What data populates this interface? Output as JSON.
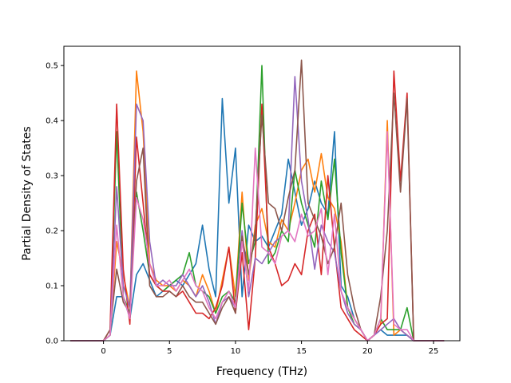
{
  "chart_data": {
    "type": "line",
    "title": "",
    "xlabel": "Frequency (THz)",
    "ylabel": "Partial Density of States",
    "xlim": [
      -3.0,
      27.0
    ],
    "ylim": [
      0.0,
      0.535
    ],
    "xticks": [
      0,
      5,
      10,
      15,
      20,
      25
    ],
    "yticks": [
      0.0,
      0.1,
      0.2,
      0.3,
      0.4,
      0.5
    ],
    "xtick_labels": [
      "0",
      "5",
      "10",
      "15",
      "20",
      "25"
    ],
    "ytick_labels": [
      "0.0",
      "0.1",
      "0.2",
      "0.3",
      "0.4",
      "0.5"
    ],
    "grid": false,
    "legend": false,
    "series": [
      {
        "color": "#1f77b4",
        "x": [
          -2.5,
          0.0,
          0.5,
          1.0,
          1.5,
          2.0,
          2.5,
          3.0,
          3.5,
          4.0,
          4.5,
          5.0,
          5.5,
          6.0,
          6.5,
          7.0,
          7.5,
          8.0,
          8.5,
          9.0,
          9.5,
          10.0,
          10.5,
          11.0,
          11.5,
          12.0,
          12.5,
          13.0,
          13.5,
          14.0,
          14.5,
          15.0,
          15.5,
          16.0,
          16.5,
          17.0,
          17.5,
          18.0,
          18.5,
          19.0,
          19.5,
          20.0,
          20.5,
          21.0,
          21.5,
          22.0,
          22.5,
          23.0,
          23.5,
          25.8
        ],
        "y": [
          0,
          0,
          0.01,
          0.08,
          0.08,
          0.04,
          0.12,
          0.14,
          0.11,
          0.08,
          0.09,
          0.1,
          0.11,
          0.1,
          0.12,
          0.14,
          0.21,
          0.13,
          0.08,
          0.44,
          0.25,
          0.35,
          0.08,
          0.21,
          0.18,
          0.19,
          0.17,
          0.2,
          0.23,
          0.33,
          0.27,
          0.21,
          0.24,
          0.29,
          0.25,
          0.23,
          0.38,
          0.1,
          0.08,
          0.04,
          0.02,
          0,
          0.01,
          0.02,
          0.01,
          0.01,
          0.01,
          0.01,
          0,
          0
        ]
      },
      {
        "color": "#ff7f0e",
        "x": [
          -2.5,
          0.0,
          0.5,
          1.0,
          1.5,
          2.0,
          2.5,
          3.0,
          3.5,
          4.0,
          4.5,
          5.0,
          5.5,
          6.0,
          6.5,
          7.0,
          7.5,
          8.0,
          8.5,
          9.0,
          9.5,
          10.0,
          10.5,
          11.0,
          11.5,
          12.0,
          12.5,
          13.0,
          13.5,
          14.0,
          14.5,
          15.0,
          15.5,
          16.0,
          16.5,
          17.0,
          17.5,
          18.0,
          18.5,
          19.0,
          19.5,
          20.0,
          20.5,
          21.0,
          21.5,
          22.0,
          22.5,
          23.0,
          23.5,
          25.8
        ],
        "y": [
          0,
          0,
          0.01,
          0.18,
          0.12,
          0.06,
          0.49,
          0.38,
          0.14,
          0.11,
          0.1,
          0.1,
          0.09,
          0.11,
          0.1,
          0.08,
          0.12,
          0.09,
          0.05,
          0.11,
          0.17,
          0.08,
          0.27,
          0.11,
          0.21,
          0.24,
          0.18,
          0.17,
          0.22,
          0.2,
          0.25,
          0.31,
          0.33,
          0.27,
          0.34,
          0.26,
          0.24,
          0.18,
          0.06,
          0.04,
          0.02,
          0,
          0.01,
          0.03,
          0.4,
          0.01,
          0.02,
          0.01,
          0,
          0
        ]
      },
      {
        "color": "#2ca02c",
        "x": [
          -2.5,
          0.0,
          0.5,
          1.0,
          1.5,
          2.0,
          2.5,
          3.0,
          3.5,
          4.0,
          4.5,
          5.0,
          5.5,
          6.0,
          6.5,
          7.0,
          7.5,
          8.0,
          8.5,
          9.0,
          9.5,
          10.0,
          10.5,
          11.0,
          11.5,
          12.0,
          12.5,
          13.0,
          13.5,
          14.0,
          14.5,
          15.0,
          15.5,
          16.0,
          16.5,
          17.0,
          17.5,
          18.0,
          18.5,
          19.0,
          19.5,
          20.0,
          20.5,
          21.0,
          21.5,
          22.0,
          22.5,
          23.0,
          23.5,
          25.8
        ],
        "y": [
          0,
          0,
          0.01,
          0.38,
          0.08,
          0.05,
          0.27,
          0.2,
          0.12,
          0.1,
          0.09,
          0.1,
          0.11,
          0.12,
          0.16,
          0.1,
          0.09,
          0.08,
          0.05,
          0.08,
          0.09,
          0.07,
          0.25,
          0.14,
          0.18,
          0.5,
          0.14,
          0.16,
          0.2,
          0.18,
          0.31,
          0.25,
          0.21,
          0.17,
          0.29,
          0.22,
          0.33,
          0.16,
          0.06,
          0.03,
          0.02,
          0,
          0.01,
          0.04,
          0.02,
          0.02,
          0.02,
          0.06,
          0,
          0
        ]
      },
      {
        "color": "#d62728",
        "x": [
          -2.5,
          0.0,
          0.5,
          1.0,
          1.5,
          2.0,
          2.5,
          3.0,
          3.5,
          4.0,
          4.5,
          5.0,
          5.5,
          6.0,
          6.5,
          7.0,
          7.5,
          8.0,
          8.5,
          9.0,
          9.5,
          10.0,
          10.5,
          11.0,
          11.5,
          12.0,
          12.5,
          13.0,
          13.5,
          14.0,
          14.5,
          15.0,
          15.5,
          16.0,
          16.5,
          17.0,
          17.5,
          18.0,
          18.5,
          19.0,
          19.5,
          20.0,
          20.5,
          21.0,
          21.5,
          22.0,
          22.5,
          23.0,
          23.5,
          25.8
        ],
        "y": [
          0,
          0,
          0.02,
          0.43,
          0.13,
          0.03,
          0.37,
          0.25,
          0.12,
          0.1,
          0.09,
          0.09,
          0.08,
          0.09,
          0.07,
          0.05,
          0.05,
          0.04,
          0.06,
          0.1,
          0.17,
          0.05,
          0.16,
          0.02,
          0.15,
          0.43,
          0.17,
          0.14,
          0.1,
          0.11,
          0.14,
          0.12,
          0.2,
          0.23,
          0.12,
          0.3,
          0.17,
          0.06,
          0.04,
          0.02,
          0.01,
          0,
          0.01,
          0.03,
          0.04,
          0.49,
          0.29,
          0.45,
          0,
          0
        ]
      },
      {
        "color": "#9467bd",
        "x": [
          -2.5,
          0.0,
          0.5,
          1.0,
          1.5,
          2.0,
          2.5,
          3.0,
          3.5,
          4.0,
          4.5,
          5.0,
          5.5,
          6.0,
          6.5,
          7.0,
          7.5,
          8.0,
          8.5,
          9.0,
          9.5,
          10.0,
          10.5,
          11.0,
          11.5,
          12.0,
          12.5,
          13.0,
          13.5,
          14.0,
          14.5,
          15.0,
          15.5,
          16.0,
          16.5,
          17.0,
          17.5,
          18.0,
          18.5,
          19.0,
          19.5,
          20.0,
          20.5,
          21.0,
          21.5,
          22.0,
          22.5,
          23.0,
          23.5,
          25.8
        ],
        "y": [
          0,
          0,
          0.01,
          0.28,
          0.1,
          0.06,
          0.43,
          0.4,
          0.18,
          0.1,
          0.11,
          0.1,
          0.1,
          0.12,
          0.1,
          0.08,
          0.1,
          0.07,
          0.03,
          0.07,
          0.08,
          0.06,
          0.2,
          0.08,
          0.15,
          0.14,
          0.16,
          0.18,
          0.19,
          0.2,
          0.48,
          0.29,
          0.22,
          0.13,
          0.21,
          0.18,
          0.16,
          0.09,
          0.05,
          0.03,
          0.02,
          0,
          0.01,
          0.02,
          0.03,
          0.04,
          0.02,
          0.01,
          0,
          0
        ]
      },
      {
        "color": "#8c564b",
        "x": [
          -2.5,
          0.0,
          0.5,
          1.0,
          1.5,
          2.0,
          2.5,
          3.0,
          3.5,
          4.0,
          4.5,
          5.0,
          5.5,
          6.0,
          6.5,
          7.0,
          7.5,
          8.0,
          8.5,
          9.0,
          9.5,
          10.0,
          10.5,
          11.0,
          11.5,
          12.0,
          12.5,
          13.0,
          13.5,
          14.0,
          14.5,
          15.0,
          15.5,
          16.0,
          16.5,
          17.0,
          17.5,
          18.0,
          18.5,
          19.0,
          19.5,
          20.0,
          20.5,
          21.0,
          21.5,
          22.0,
          22.5,
          23.0,
          23.5,
          25.8
        ],
        "y": [
          0,
          0,
          0.02,
          0.13,
          0.07,
          0.05,
          0.29,
          0.35,
          0.1,
          0.08,
          0.08,
          0.09,
          0.08,
          0.1,
          0.08,
          0.07,
          0.07,
          0.05,
          0.03,
          0.06,
          0.08,
          0.05,
          0.19,
          0.12,
          0.2,
          0.41,
          0.25,
          0.24,
          0.2,
          0.26,
          0.31,
          0.51,
          0.25,
          0.22,
          0.19,
          0.14,
          0.17,
          0.25,
          0.12,
          0.06,
          0.02,
          0,
          0.01,
          0.08,
          0.2,
          0.45,
          0.27,
          0.44,
          0,
          0
        ]
      },
      {
        "color": "#e377c2",
        "x": [
          -2.5,
          0.0,
          0.5,
          1.0,
          1.5,
          2.0,
          2.5,
          3.0,
          3.5,
          4.0,
          4.5,
          5.0,
          5.5,
          6.0,
          6.5,
          7.0,
          7.5,
          8.0,
          8.5,
          9.0,
          9.5,
          10.0,
          10.5,
          11.0,
          11.5,
          12.0,
          12.5,
          13.0,
          13.5,
          14.0,
          14.5,
          15.0,
          15.5,
          16.0,
          16.5,
          17.0,
          17.5,
          18.0,
          18.5,
          19.0,
          19.5,
          20.0,
          20.5,
          21.0,
          21.5,
          22.0,
          22.5,
          23.0,
          23.5,
          25.8
        ],
        "y": [
          0,
          0,
          0.01,
          0.21,
          0.08,
          0.04,
          0.26,
          0.22,
          0.14,
          0.1,
          0.1,
          0.11,
          0.09,
          0.11,
          0.13,
          0.1,
          0.09,
          0.06,
          0.04,
          0.07,
          0.09,
          0.06,
          0.18,
          0.09,
          0.35,
          0.17,
          0.16,
          0.14,
          0.19,
          0.2,
          0.18,
          0.23,
          0.19,
          0.2,
          0.24,
          0.12,
          0.23,
          0.09,
          0.06,
          0.04,
          0.02,
          0,
          0.01,
          0.04,
          0.38,
          0.03,
          0.02,
          0.02,
          0,
          0
        ]
      }
    ]
  }
}
